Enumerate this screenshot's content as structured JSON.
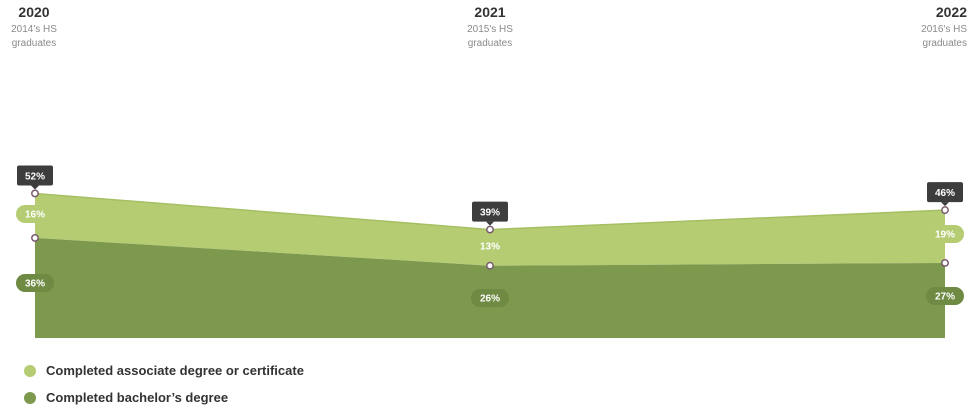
{
  "chart_data": {
    "type": "area",
    "stacked": true,
    "categories": [
      {
        "year": "2020",
        "line1": "2014's HS",
        "line2": "graduates"
      },
      {
        "year": "2021",
        "line1": "2015's HS",
        "line2": "graduates"
      },
      {
        "year": "2022",
        "line1": "2016's HS",
        "line2": "graduates"
      }
    ],
    "series": [
      {
        "name": "Completed bachelor’s degree",
        "values": [
          36,
          26,
          27
        ],
        "labels": [
          "36%",
          "26%",
          "27%"
        ],
        "color": "#7d994e"
      },
      {
        "name": "Completed associate degree or certificate",
        "values": [
          16,
          13,
          19
        ],
        "labels": [
          "16%",
          "13%",
          "19%"
        ],
        "color": "#b5cc73"
      }
    ],
    "totals": {
      "values": [
        52,
        39,
        46
      ],
      "labels": [
        "52%",
        "39%",
        "46%"
      ],
      "color": "#3d3d3d"
    },
    "legend": [
      {
        "label": "Completed associate degree or certificate",
        "color": "#b5cc73"
      },
      {
        "label": "Completed bachelor’s degree",
        "color": "#7d994e"
      }
    ],
    "ylim": [
      0,
      100
    ],
    "grid": false,
    "legend_position": "bottom-left"
  }
}
